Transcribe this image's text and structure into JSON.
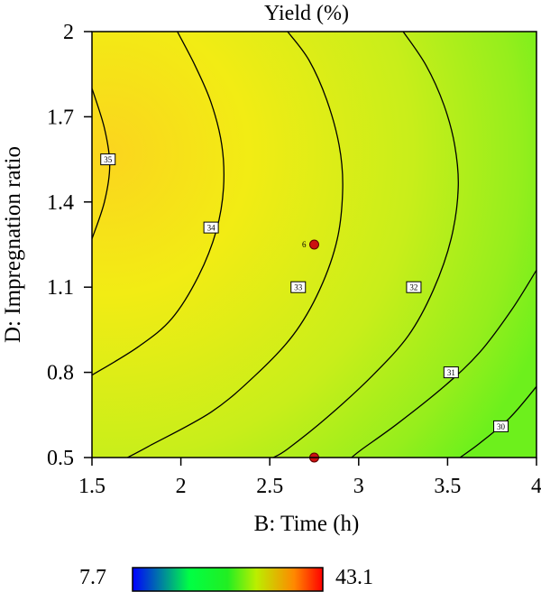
{
  "chart_data": {
    "type": "contour",
    "title": "Yield (%)",
    "xlabel": "B: Time (h)",
    "ylabel": "D: Impregnation ratio",
    "xlim": [
      1.5,
      4
    ],
    "ylim": [
      0.5,
      2
    ],
    "xticks": [
      "1.5",
      "2",
      "2.5",
      "3",
      "3.5",
      "4"
    ],
    "yticks": [
      "0.5",
      "0.8",
      "1.1",
      "1.4",
      "1.7",
      "2"
    ],
    "contours": [
      {
        "level": "35",
        "points": [
          [
            1.5,
            1.8
          ],
          [
            1.57,
            1.66
          ],
          [
            1.6,
            1.53
          ],
          [
            1.57,
            1.4
          ],
          [
            1.5,
            1.27
          ]
        ],
        "label_at": [
          1.59,
          1.55
        ]
      },
      {
        "level": "34",
        "points": [
          [
            1.98,
            2.0
          ],
          [
            2.08,
            1.88
          ],
          [
            2.17,
            1.75
          ],
          [
            2.23,
            1.6
          ],
          [
            2.24,
            1.45
          ],
          [
            2.2,
            1.3
          ],
          [
            2.1,
            1.14
          ],
          [
            1.95,
            0.99
          ],
          [
            1.76,
            0.89
          ],
          [
            1.5,
            0.79
          ]
        ],
        "label_at": [
          2.17,
          1.31
        ]
      },
      {
        "level": "33",
        "points": [
          [
            2.6,
            2.0
          ],
          [
            2.72,
            1.9
          ],
          [
            2.82,
            1.76
          ],
          [
            2.89,
            1.6
          ],
          [
            2.91,
            1.45
          ],
          [
            2.88,
            1.27
          ],
          [
            2.78,
            1.09
          ],
          [
            2.63,
            0.93
          ],
          [
            2.42,
            0.79
          ],
          [
            2.17,
            0.66
          ],
          [
            1.82,
            0.54
          ],
          [
            1.7,
            0.5
          ]
        ],
        "label_at": [
          2.66,
          1.1
        ]
      },
      {
        "level": "32",
        "points": [
          [
            3.25,
            2.0
          ],
          [
            3.38,
            1.88
          ],
          [
            3.48,
            1.74
          ],
          [
            3.54,
            1.6
          ],
          [
            3.56,
            1.45
          ],
          [
            3.52,
            1.27
          ],
          [
            3.42,
            1.09
          ],
          [
            3.28,
            0.93
          ],
          [
            3.08,
            0.79
          ],
          [
            2.82,
            0.64
          ],
          [
            2.6,
            0.53
          ],
          [
            2.52,
            0.5
          ]
        ],
        "label_at": [
          3.31,
          1.1
        ]
      },
      {
        "level": "31",
        "points": [
          [
            4.0,
            1.16
          ],
          [
            3.86,
            1.02
          ],
          [
            3.68,
            0.87
          ],
          [
            3.48,
            0.75
          ],
          [
            3.22,
            0.62
          ],
          [
            3.02,
            0.53
          ],
          [
            2.96,
            0.5
          ]
        ],
        "label_at": [
          3.52,
          0.8
        ]
      },
      {
        "level": "30",
        "points": [
          [
            4.0,
            0.75
          ],
          [
            3.85,
            0.64
          ],
          [
            3.68,
            0.55
          ],
          [
            3.57,
            0.5
          ]
        ],
        "label_at": [
          3.8,
          0.61
        ]
      }
    ],
    "design_points": [
      {
        "x": 2.75,
        "y": 1.25,
        "label": "6"
      },
      {
        "x": 2.75,
        "y": 0.5,
        "label": ""
      }
    ],
    "colorbar": {
      "min": "7.7",
      "max": "43.1"
    }
  }
}
